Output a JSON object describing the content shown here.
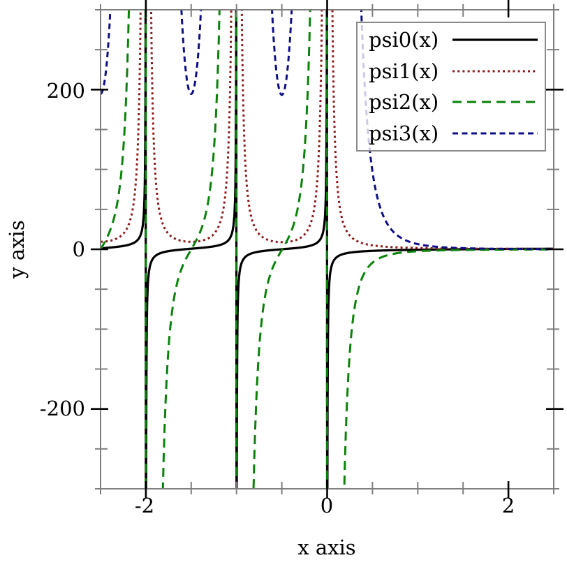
{
  "chart_data": {
    "type": "line",
    "title": "",
    "xlabel": "x axis",
    "ylabel": "y axis",
    "xlim": [
      -2.5,
      2.5
    ],
    "ylim": [
      -300,
      300
    ],
    "grid": false,
    "x_major_ticks": [
      -2,
      0,
      2
    ],
    "x_tick_labels": [
      "-2",
      "0",
      "2"
    ],
    "x_minor_step": 0.5,
    "y_major_ticks": [
      200,
      0,
      -200
    ],
    "y_tick_labels": [
      "200",
      "0",
      "-200"
    ],
    "y_minor_step": 50,
    "legend": {
      "position": "top-right",
      "frame": true,
      "background_alpha": 0.78
    },
    "poles": [
      0,
      -1,
      -2
    ],
    "sample_step": 0.0025,
    "series": [
      {
        "name": "psi0(x)",
        "function": "polygamma",
        "order": 0,
        "color": "#000000",
        "dash": [],
        "width": 3.2,
        "key_points": [
          [
            -2.5,
            1.1032
          ],
          [
            -1.5,
            0.7032
          ],
          [
            -0.5,
            0.0365
          ],
          [
            0.5,
            -1.9635
          ],
          [
            1,
            -0.5772
          ],
          [
            2,
            0.4228
          ],
          [
            2.5,
            0.7032
          ]
        ]
      },
      {
        "name": "psi1(x)",
        "function": "polygamma",
        "order": 1,
        "color": "#8b1a1a",
        "dash": [
          3,
          4.2
        ],
        "width": 3,
        "key_points": [
          [
            -1.5,
            9.3793
          ],
          [
            -0.5,
            8.9348
          ],
          [
            0.5,
            4.9348
          ],
          [
            1,
            1.6449
          ],
          [
            2,
            0.6449
          ],
          [
            2.5,
            0.4904
          ]
        ]
      },
      {
        "name": "psi2(x)",
        "function": "polygamma",
        "order": 2,
        "color": "#0a820a",
        "dash": [
          13,
          8
        ],
        "width": 3,
        "key_points": [
          [
            -1.5,
            -0.2362
          ],
          [
            -0.5,
            -0.8288
          ],
          [
            0.5,
            -16.8288
          ],
          [
            1,
            -2.4041
          ],
          [
            2,
            -0.4041
          ]
        ]
      },
      {
        "name": "psi3(x)",
        "function": "polygamma",
        "order": 3,
        "color": "#0e0e85",
        "dash": [
          8,
          5.5
        ],
        "width": 3,
        "key_points": [
          [
            -1.5,
            194.594
          ],
          [
            -0.5,
            193.409
          ],
          [
            0.5,
            97.409
          ],
          [
            1,
            6.4939
          ],
          [
            2,
            0.4939
          ]
        ]
      }
    ],
    "style": {
      "border_color": "#7f7f7f",
      "border_width": 2,
      "major_tick_color": "#000000",
      "major_tick_width": 2.6,
      "minor_tick_color": "#7f7f7f",
      "minor_tick_width": 2,
      "text_color": "#000000",
      "background": "#ffffff"
    }
  }
}
